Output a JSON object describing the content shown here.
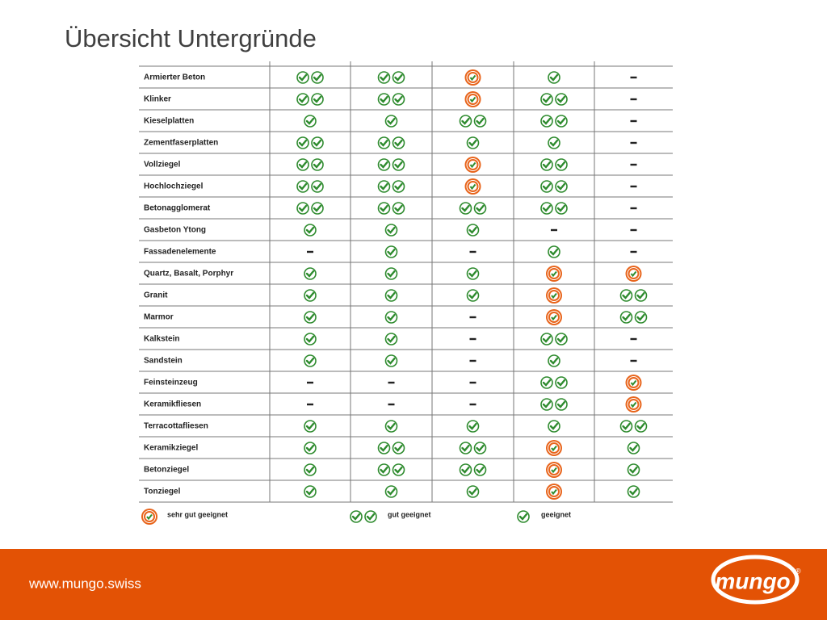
{
  "header": {
    "title": "Übersicht Untergründe"
  },
  "table": {
    "rows": [
      [
        "Armierter Beton",
        2,
        2,
        3,
        1,
        0
      ],
      [
        "Klinker",
        2,
        2,
        3,
        2,
        0
      ],
      [
        "Kieselplatten",
        1,
        1,
        2,
        2,
        0
      ],
      [
        "Zementfaserplatten",
        2,
        2,
        1,
        1,
        0
      ],
      [
        "Vollziegel",
        2,
        2,
        3,
        2,
        0
      ],
      [
        "Hochlochziegel",
        2,
        2,
        3,
        2,
        0
      ],
      [
        "Betonagglomerat",
        2,
        2,
        2,
        2,
        0
      ],
      [
        "Gasbeton Ytong",
        1,
        1,
        1,
        0,
        0
      ],
      [
        "Fassadenelemente",
        0,
        1,
        0,
        1,
        0
      ],
      [
        "Quartz, Basalt, Porphyr",
        1,
        1,
        1,
        3,
        3
      ],
      [
        "Granit",
        1,
        1,
        1,
        3,
        2
      ],
      [
        "Marmor",
        1,
        1,
        0,
        3,
        2
      ],
      [
        "Kalkstein",
        1,
        1,
        0,
        2,
        0
      ],
      [
        "Sandstein",
        1,
        1,
        0,
        1,
        0
      ],
      [
        "Feinsteinzeug",
        0,
        0,
        0,
        2,
        3
      ],
      [
        "Keramikfliesen",
        0,
        0,
        0,
        2,
        3
      ],
      [
        "Terracottafliesen",
        1,
        1,
        1,
        1,
        2
      ],
      [
        "Keramikziegel",
        1,
        2,
        2,
        3,
        1
      ],
      [
        "Betonziegel",
        1,
        2,
        2,
        3,
        1
      ],
      [
        "Tonziegel",
        1,
        1,
        1,
        3,
        1
      ]
    ]
  },
  "legend": [
    {
      "rating": 3,
      "label": "sehr gut geeignet"
    },
    {
      "rating": 2,
      "label": "gut geeignet"
    },
    {
      "rating": 1,
      "label": "geeignet"
    }
  ],
  "footer": {
    "url": "www.mungo.swiss",
    "logo": "mungo"
  }
}
